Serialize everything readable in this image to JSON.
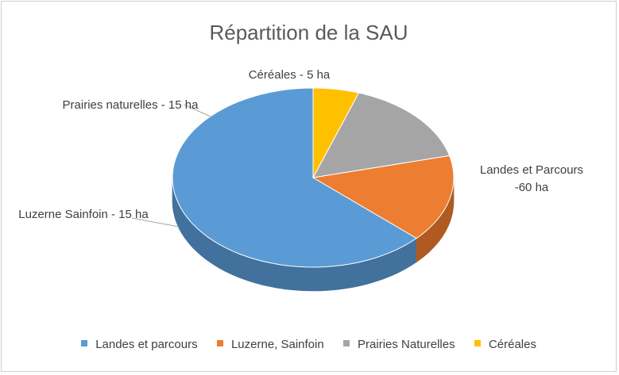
{
  "chart_data": {
    "type": "pie",
    "title": "Répartition de la SAU",
    "slices": [
      {
        "legend": "Landes et parcours",
        "data_label": "Landes et Parcours -60 ha",
        "value": 60,
        "color": "#5b9bd5",
        "side_color": "#41719c"
      },
      {
        "legend": "Luzerne, Sainfoin",
        "data_label": "Luzerne Sainfoin - 15 ha",
        "value": 15,
        "color": "#ed7d31",
        "side_color": "#ae5a21"
      },
      {
        "legend": "Prairies Naturelles",
        "data_label": "Prairies naturelles - 15 ha",
        "value": 15,
        "color": "#a5a5a5",
        "side_color": "#7c7c7c"
      },
      {
        "legend": "Céréales",
        "data_label": "Céréales - 5 ha",
        "value": 5,
        "color": "#ffc000",
        "side_color": "#bf9000"
      }
    ],
    "legend_position": "bottom",
    "style": "3d"
  }
}
